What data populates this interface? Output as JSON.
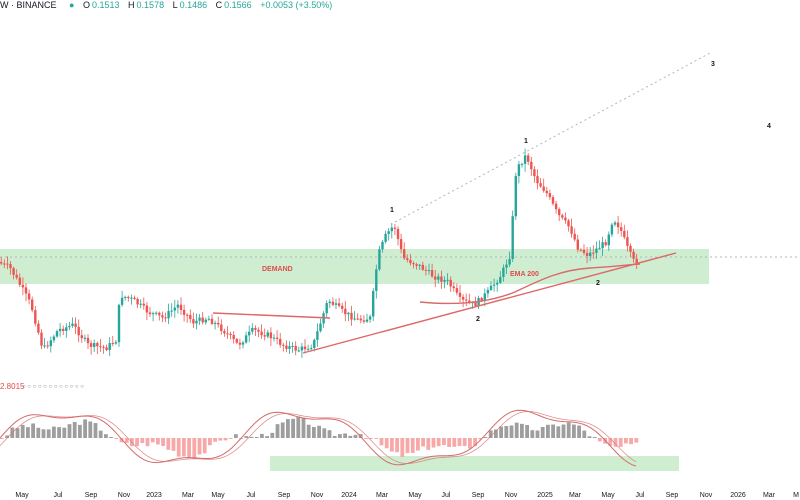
{
  "header": {
    "symbol": "W · BINANCE",
    "o_label": "O",
    "o_value": "0.1513",
    "h_label": "H",
    "h_value": "0.1578",
    "l_label": "L",
    "l_value": "0.1486",
    "c_label": "C",
    "c_value": "0.1566",
    "change": "+0.0053 (+3.50%)"
  },
  "colors": {
    "up": "#26a69a",
    "down": "#ef5350",
    "zone": "#bfe8c2",
    "zone_stroke": "#7cc98a",
    "trend": "#e06666",
    "ema": "#d86a6a",
    "dotted": "#b2b5be",
    "label": "#131722",
    "hist_pos": "#9e9e9e",
    "hist_neg": "#f7a8a8",
    "osc_line": "#d56b6b"
  },
  "chart_data": {
    "type": "candlestick",
    "x_axis_labels": [
      "May",
      "Jul",
      "Sep",
      "Nov",
      "2023",
      "Mar",
      "May",
      "Jul",
      "Sep",
      "Nov",
      "2024",
      "Mar",
      "May",
      "Jul",
      "Sep",
      "Nov",
      "2025",
      "Mar",
      "May",
      "Jul",
      "Sep",
      "Nov",
      "2026",
      "Mar",
      "M"
    ],
    "annotations": {
      "zone_label": "DEMAND",
      "ema_label": "EMA 200",
      "wave_labels": [
        "1",
        "2",
        "1",
        "2",
        "3",
        "4"
      ]
    },
    "last_close": 0.1566,
    "oscillator_readout": "2.8015",
    "oscillator_counter": "○ ○ ○ ○ ○ ○ ○ ○ ○ ○ ○ ○"
  }
}
